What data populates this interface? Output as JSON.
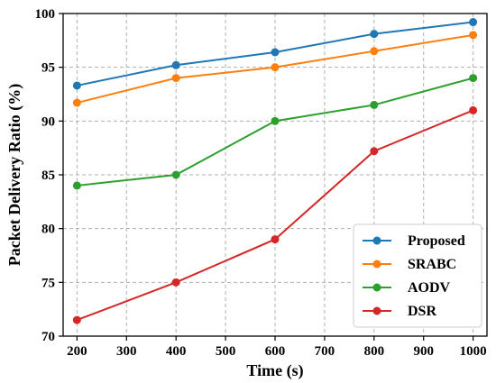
{
  "chart_data": {
    "type": "line",
    "title": "",
    "xlabel": "Time (s)",
    "ylabel": "Packet Delivery Ratio (%)",
    "xlim": [
      172,
      1028
    ],
    "ylim": [
      70,
      100
    ],
    "xticks": [
      200,
      300,
      400,
      500,
      600,
      700,
      800,
      900,
      1000
    ],
    "yticks": [
      70,
      75,
      80,
      85,
      90,
      95,
      100
    ],
    "grid": true,
    "legend_position": "lower-right",
    "x": [
      200,
      400,
      600,
      800,
      1000
    ],
    "series": [
      {
        "name": "Proposed",
        "color": "#1f77b4",
        "values": [
          93.3,
          95.2,
          96.4,
          98.1,
          99.2
        ]
      },
      {
        "name": "SRABC",
        "color": "#ff7f0e",
        "values": [
          91.7,
          94.0,
          95.0,
          96.5,
          98.0
        ]
      },
      {
        "name": "AODV",
        "color": "#2ca02c",
        "values": [
          84.0,
          85.0,
          90.0,
          91.5,
          94.0
        ]
      },
      {
        "name": "DSR",
        "color": "#d62728",
        "values": [
          71.5,
          75.0,
          79.0,
          87.2,
          91.0
        ]
      }
    ]
  }
}
